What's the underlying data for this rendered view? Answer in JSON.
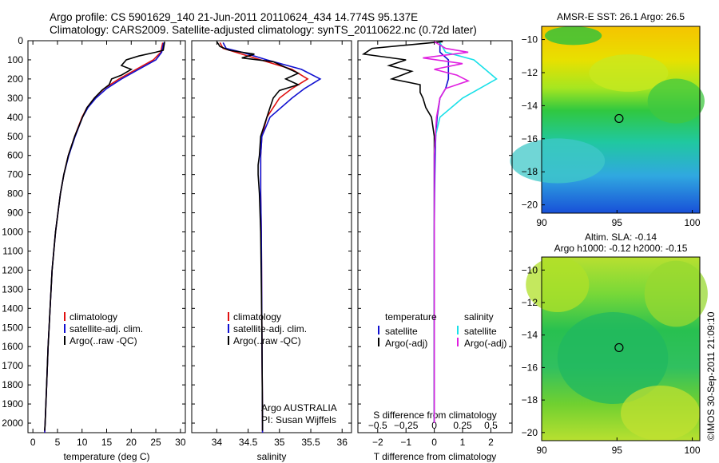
{
  "header": {
    "line1": "Argo profile: CS 5901629_140 21-Jun-2011 20110624_434 14.774S 95.137E",
    "line2": "Climatology: CARS2009. Satellite-adjusted climatology: synTS_20110622.nc (0.72d later)"
  },
  "side_stamp": "©IMOS 30-Sep-2011 21:09:10",
  "colors": {
    "climatology": "#e01010",
    "satellite": "#1010d0",
    "argo": "#000000",
    "sal_satellite": "#18e0e8",
    "sal_argo": "#e020e0"
  },
  "chart_data": [
    {
      "id": "temperature",
      "type": "line",
      "xlabel": "temperature (deg C)",
      "xlim": [
        -1,
        31
      ],
      "xticks": [
        0,
        5,
        10,
        15,
        20,
        25,
        30
      ],
      "ylim": [
        2050,
        0
      ],
      "yticks": [
        0,
        100,
        200,
        300,
        400,
        500,
        600,
        700,
        800,
        900,
        1000,
        1100,
        1200,
        1300,
        1400,
        1500,
        1600,
        1700,
        1800,
        1900,
        2000
      ],
      "legend": [
        "climatology",
        "satellite-adj. clim.",
        "Argo(..raw -QC)"
      ],
      "series": [
        {
          "name": "climatology",
          "color_key": "climatology",
          "depth": [
            10,
            60,
            100,
            150,
            200,
            250,
            300,
            350,
            400,
            500,
            600,
            700,
            800,
            1000,
            1200,
            1400,
            1600,
            1800,
            2000,
            2050
          ],
          "values": [
            26.4,
            26.0,
            24.5,
            21.0,
            17.5,
            14.5,
            12.5,
            11.0,
            10.0,
            8.5,
            7.2,
            6.3,
            5.6,
            4.6,
            3.9,
            3.5,
            3.1,
            2.8,
            2.5,
            2.4
          ]
        },
        {
          "name": "satellite-adj. clim.",
          "color_key": "satellite",
          "depth": [
            10,
            60,
            100,
            150,
            200,
            250,
            300,
            350,
            400,
            500,
            600,
            700,
            800,
            1000,
            1200,
            1400,
            1600,
            1800,
            2000,
            2050
          ],
          "values": [
            26.6,
            26.2,
            25.0,
            21.5,
            18.0,
            15.0,
            12.8,
            11.2,
            10.1,
            8.6,
            7.3,
            6.3,
            5.6,
            4.6,
            3.9,
            3.5,
            3.1,
            2.8,
            2.5,
            2.4
          ]
        },
        {
          "name": "Argo(..raw -QC)",
          "color_key": "argo",
          "depth": [
            5,
            50,
            60,
            80,
            100,
            130,
            150,
            180,
            200,
            230,
            260,
            300,
            350,
            400,
            500,
            600,
            700,
            800,
            1000,
            1200,
            1400,
            1600,
            1800,
            2000,
            2040
          ],
          "values": [
            26.8,
            26.5,
            25.0,
            21.5,
            19.0,
            18.0,
            20.0,
            18.0,
            16.0,
            15.5,
            14.0,
            12.5,
            11.0,
            10.1,
            8.5,
            7.2,
            6.3,
            5.6,
            4.6,
            3.9,
            3.5,
            3.1,
            2.8,
            2.5,
            2.4
          ]
        }
      ]
    },
    {
      "id": "salinity",
      "type": "line",
      "xlabel": "salinity",
      "xlim": [
        33.6,
        36.15
      ],
      "xticks": [
        34,
        34.5,
        35,
        35.5,
        36
      ],
      "xticklabels": [
        "34",
        "34.5",
        "35",
        "35.5",
        "36"
      ],
      "ylim": [
        2050,
        0
      ],
      "legend": [
        "climatology",
        "satellite-adj. clim.",
        "Argo(..raw -QC)"
      ],
      "annotation": [
        "Argo AUSTRALIA",
        "PI: Susan Wijffels"
      ],
      "series": [
        {
          "name": "climatology",
          "color_key": "climatology",
          "depth": [
            10,
            40,
            60,
            100,
            150,
            200,
            250,
            300,
            400,
            500,
            600,
            700,
            800,
            1000,
            1500,
            2000,
            2050
          ],
          "values": [
            34.05,
            34.1,
            34.3,
            34.7,
            35.2,
            35.45,
            35.2,
            35.0,
            34.8,
            34.72,
            34.7,
            34.7,
            34.7,
            34.71,
            34.72,
            34.73,
            34.73
          ]
        },
        {
          "name": "satellite-adj. clim.",
          "color_key": "satellite",
          "depth": [
            10,
            40,
            60,
            100,
            150,
            200,
            250,
            300,
            400,
            500,
            600,
            700,
            800,
            1000,
            1500,
            2000,
            2050
          ],
          "values": [
            34.1,
            34.15,
            34.4,
            34.8,
            35.35,
            35.65,
            35.4,
            35.2,
            34.85,
            34.72,
            34.7,
            34.7,
            34.7,
            34.71,
            34.72,
            34.73,
            34.73
          ]
        },
        {
          "name": "Argo(..raw -QC)",
          "color_key": "argo",
          "depth": [
            5,
            30,
            50,
            70,
            90,
            110,
            140,
            170,
            200,
            230,
            260,
            300,
            350,
            400,
            500,
            600,
            650,
            700,
            800,
            1000,
            1500,
            2000,
            2040
          ],
          "values": [
            34.0,
            34.05,
            34.2,
            34.6,
            34.4,
            34.9,
            35.1,
            35.3,
            35.1,
            35.3,
            35.0,
            34.9,
            34.85,
            34.8,
            34.7,
            34.68,
            34.66,
            34.66,
            34.68,
            34.7,
            34.72,
            34.73,
            34.73
          ]
        }
      ]
    },
    {
      "id": "difference",
      "type": "line",
      "xlabel": "T difference from climatology",
      "xlim": [
        -2.7,
        2.75
      ],
      "xticks": [
        -2,
        -1,
        0,
        1,
        2
      ],
      "xticklabels": [
        "−2",
        "−1",
        "0",
        "1",
        "2"
      ],
      "top_xlabel": "S difference from climatology",
      "top_xticks": [
        -0.5,
        -0.25,
        0,
        0.25,
        0.5
      ],
      "top_xticklabels": [
        "−0.5",
        "−0.25",
        "0",
        "0.25",
        "0.5"
      ],
      "ylim": [
        2050,
        0
      ],
      "legend_groups": [
        {
          "heading": "temperature",
          "items": [
            {
              "label": "satellite",
              "color_key": "satellite"
            },
            {
              "label": "Argo(-adj)",
              "color_key": "argo"
            }
          ]
        },
        {
          "heading": "salinity",
          "items": [
            {
              "label": "satellite",
              "color_key": "sal_satellite"
            },
            {
              "label": "Argo(-adj)",
              "color_key": "sal_argo"
            }
          ]
        }
      ],
      "series": [
        {
          "name": "temperature satellite",
          "color_key": "satellite",
          "depth": [
            10,
            60,
            100,
            150,
            200,
            250,
            300,
            400,
            500,
            600,
            700,
            800,
            1000,
            1500,
            2000
          ],
          "values": [
            0.2,
            0.2,
            0.5,
            0.5,
            0.5,
            0.4,
            0.2,
            0.1,
            0.05,
            0.03,
            0.02,
            0.01,
            0.0,
            0.0,
            0.0
          ]
        },
        {
          "name": "temperature Argo(-adj)",
          "color_key": "argo",
          "depth": [
            5,
            40,
            70,
            100,
            130,
            160,
            200,
            230,
            270,
            300,
            350,
            400,
            500,
            600,
            800,
            1000,
            1500,
            2000
          ],
          "values": [
            0.3,
            -2.2,
            -2.5,
            -1.0,
            -1.6,
            -0.8,
            -1.5,
            -0.5,
            -0.5,
            -0.4,
            -0.3,
            -0.1,
            0.0,
            0.0,
            0.0,
            0.0,
            0.0,
            0.0
          ]
        },
        {
          "name": "salinity satellite",
          "color_key": "sal_satellite",
          "depth": [
            10,
            60,
            100,
            150,
            200,
            250,
            300,
            400,
            500,
            600,
            800,
            1000,
            1500,
            2000
          ],
          "values": [
            0.05,
            0.1,
            0.35,
            0.45,
            0.55,
            0.4,
            0.25,
            0.05,
            0.01,
            0.0,
            0.0,
            0.0,
            0.0,
            0.0
          ]
        },
        {
          "name": "salinity Argo(-adj)",
          "color_key": "sal_argo",
          "depth": [
            5,
            40,
            60,
            90,
            120,
            150,
            180,
            210,
            250,
            300,
            400,
            500,
            600,
            800,
            1000,
            1500,
            2000
          ],
          "values": [
            0.0,
            0.1,
            0.3,
            -0.1,
            0.25,
            0.0,
            0.2,
            0.3,
            0.1,
            0.05,
            0.02,
            0.01,
            0.0,
            0.0,
            0.0,
            0.0,
            0.0
          ]
        }
      ]
    },
    {
      "id": "sst-map",
      "type": "heatmap",
      "title": "AMSR-E SST: 26.1  Argo: 26.5",
      "xlim": [
        90,
        100.5
      ],
      "xticks": [
        90,
        95,
        100
      ],
      "ylim": [
        -20.5,
        -9.2
      ],
      "yticks": [
        -10,
        -12,
        -14,
        -16,
        -18,
        -20
      ],
      "yticklabels": [
        "−10",
        "−12",
        "−14",
        "−16",
        "−18",
        "−20"
      ],
      "marker": {
        "lon": 95.137,
        "lat": -14.774
      }
    },
    {
      "id": "sla-map",
      "type": "heatmap",
      "title": [
        "Altim. SLA: -0.14",
        "Argo h1000: -0.12 h2000: -0.15"
      ],
      "xlim": [
        90,
        100.5
      ],
      "xticks": [
        90,
        95,
        100
      ],
      "ylim": [
        -20.5,
        -9.2
      ],
      "yticks": [
        -10,
        -12,
        -14,
        -16,
        -18,
        -20
      ],
      "yticklabels": [
        "−10",
        "−12",
        "−14",
        "−16",
        "−18",
        "−20"
      ],
      "marker": {
        "lon": 95.137,
        "lat": -14.774
      }
    }
  ]
}
